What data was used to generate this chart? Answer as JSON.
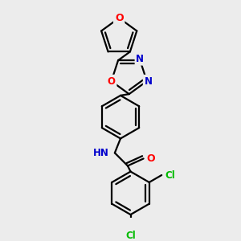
{
  "background_color": "#ececec",
  "bond_color": "#000000",
  "atom_colors": {
    "O": "#ff0000",
    "N": "#0000cc",
    "Cl": "#00bb00",
    "C": "#000000",
    "H": "#000000"
  },
  "bond_width": 1.6,
  "figsize": [
    3.0,
    3.0
  ],
  "dpi": 100
}
